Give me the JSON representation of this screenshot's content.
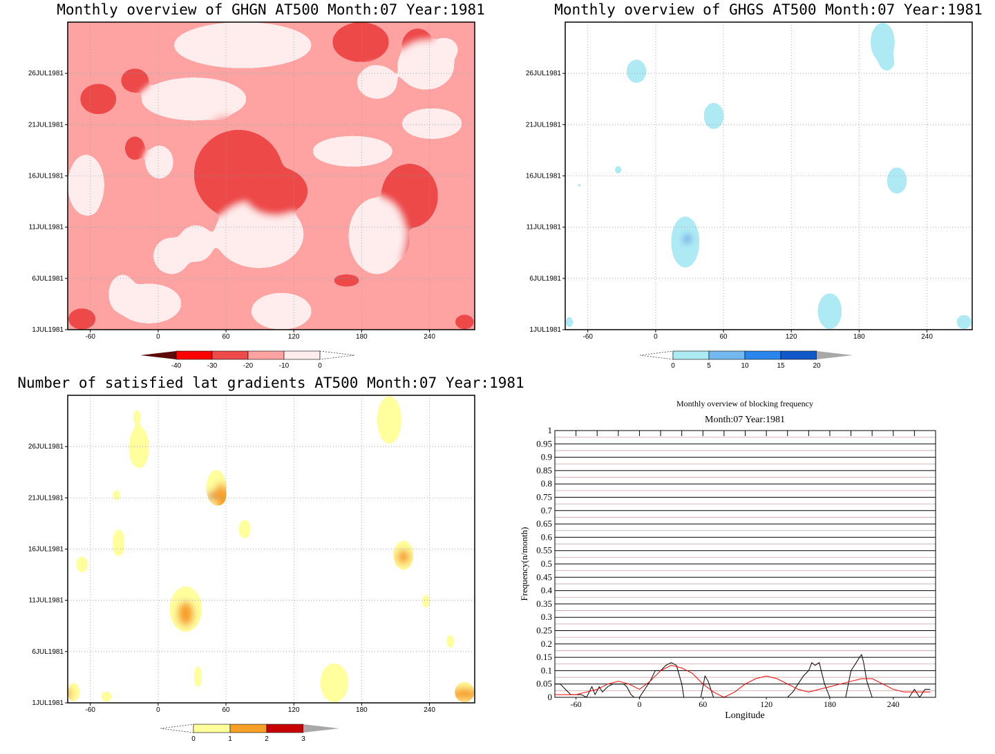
{
  "chart_data": [
    {
      "type": "heatmap",
      "title": "Monthly overview of GHGN AT500 Month:07 Year:1981",
      "x_ticks": [
        -60,
        0,
        60,
        120,
        180,
        240
      ],
      "y_ticks": [
        "1JUL1981",
        "6JUL1981",
        "11JUL1981",
        "16JUL1981",
        "21JUL1981",
        "26JUL1981"
      ],
      "xlim": [
        -80,
        280
      ],
      "ylim": [
        1,
        31
      ],
      "grid": true,
      "colorbar": {
        "labels": [
          "-40",
          "-30",
          "-20",
          "-10",
          "0"
        ],
        "colors": [
          "#5c0a0a",
          "#ff0000",
          "#ee4a4a",
          "#ffa2a2",
          "#ffecec"
        ]
      },
      "palette": [
        "#ffa2a2",
        "#ffecec",
        "#ee4a4a"
      ]
    },
    {
      "type": "heatmap",
      "title": "Monthly overview of GHGS AT500 Month:07 Year:1981",
      "x_ticks": [
        -60,
        0,
        60,
        120,
        180,
        240
      ],
      "y_ticks": [
        "1JUL1981",
        "6JUL1981",
        "11JUL1981",
        "16JUL1981",
        "21JUL1981",
        "26JUL1981"
      ],
      "xlim": [
        -80,
        280
      ],
      "ylim": [
        1,
        31
      ],
      "grid": true,
      "colorbar": {
        "labels": [
          "0",
          "5",
          "10",
          "15",
          "20"
        ],
        "colors": [
          "#aeeaf4",
          "#74b8f0",
          "#2a86ec",
          "#1158c8",
          "#a8a8a8"
        ]
      },
      "palette": [
        "#aeeaf4",
        "#5c9ae8"
      ]
    },
    {
      "type": "heatmap",
      "title": "Number of satisfied lat gradients AT500 Month:07 Year:1981",
      "x_ticks": [
        -60,
        0,
        60,
        120,
        180,
        240
      ],
      "y_ticks": [
        "1JUL1981",
        "6JUL1981",
        "11JUL1981",
        "16JUL1981",
        "21JUL1981",
        "26JUL1981"
      ],
      "xlim": [
        -80,
        280
      ],
      "ylim": [
        1,
        31
      ],
      "grid": true,
      "colorbar": {
        "labels": [
          "0",
          "1",
          "2",
          "3"
        ],
        "colors": [
          "#ffff9e",
          "#f7a028",
          "#c80000",
          "#a8a8a8"
        ]
      },
      "palette": [
        "#ffff9e",
        "#f7a028",
        "#c80000"
      ]
    },
    {
      "type": "line",
      "title": "Monthly overview of blocking frequency",
      "subtitle": "Month:07 Year:1981",
      "xlabel": "Longitude",
      "ylabel": "Frequency(n/month)",
      "x_ticks": [
        -60,
        0,
        60,
        120,
        180,
        240
      ],
      "y_ticks": [
        "0",
        "0.05",
        "0.1",
        "0.15",
        "0.2",
        "0.25",
        "0.3",
        "0.35",
        "0.4",
        "0.45",
        "0.5",
        "0.55",
        "0.6",
        "0.65",
        "0.7",
        "0.75",
        "0.8",
        "0.85",
        "0.9",
        "0.95",
        "1"
      ],
      "xlim": [
        -80,
        280
      ],
      "ylim": [
        0,
        1
      ],
      "grid": true,
      "series": [
        {
          "color": "#000000",
          "x": [
            -80,
            -75,
            -70,
            -65,
            -60,
            -55,
            -50,
            -45,
            -42,
            -38,
            -35,
            -30,
            -25,
            -20,
            -15,
            -12,
            -8,
            -5,
            0,
            5,
            10,
            15,
            20,
            25,
            30,
            35,
            40,
            42,
            45,
            50,
            55,
            58,
            60,
            62,
            65,
            70,
            75,
            80,
            85,
            90,
            95,
            100,
            105,
            110,
            115,
            120,
            125,
            130,
            135,
            140,
            145,
            150,
            155,
            160,
            163,
            166,
            170,
            175,
            180,
            185,
            190,
            195,
            200,
            205,
            208,
            210,
            212,
            215,
            220,
            225,
            230,
            235,
            240,
            245,
            250,
            255,
            260,
            265,
            270,
            275
          ],
          "y": [
            0.05,
            0.05,
            0.03,
            0.01,
            0.01,
            0.01,
            0.0,
            0.04,
            0.01,
            0.04,
            0.02,
            0.04,
            0.05,
            0.05,
            0.05,
            0.04,
            0.01,
            0.0,
            0.0,
            0.03,
            0.06,
            0.1,
            0.1,
            0.12,
            0.13,
            0.12,
            0.05,
            0.0,
            0.0,
            0.0,
            0.0,
            0.0,
            0.04,
            0.08,
            0.06,
            0.0,
            0.0,
            0.0,
            0.0,
            0.0,
            0.0,
            0.0,
            0.0,
            0.0,
            0.0,
            0.0,
            0.0,
            0.0,
            0.0,
            0.0,
            0.02,
            0.05,
            0.08,
            0.1,
            0.13,
            0.12,
            0.13,
            0.05,
            0.0,
            0.0,
            0.0,
            0.0,
            0.1,
            0.13,
            0.15,
            0.16,
            0.13,
            0.06,
            0.0,
            0.0,
            0.0,
            0.0,
            0.0,
            0.0,
            0.0,
            0.0,
            0.03,
            0.0,
            0.03,
            0.03
          ]
        },
        {
          "color": "#ff0000",
          "x": [
            -80,
            -70,
            -60,
            -50,
            -40,
            -30,
            -20,
            -10,
            0,
            10,
            20,
            30,
            40,
            50,
            60,
            70,
            80,
            90,
            100,
            110,
            120,
            130,
            140,
            150,
            160,
            170,
            180,
            190,
            200,
            210,
            220,
            230,
            240,
            250,
            260,
            270,
            275
          ],
          "y": [
            0.01,
            0.01,
            0.01,
            0.02,
            0.03,
            0.05,
            0.06,
            0.05,
            0.03,
            0.06,
            0.1,
            0.12,
            0.11,
            0.09,
            0.05,
            0.02,
            0.0,
            0.02,
            0.05,
            0.07,
            0.08,
            0.07,
            0.05,
            0.03,
            0.02,
            0.03,
            0.04,
            0.05,
            0.06,
            0.07,
            0.07,
            0.05,
            0.03,
            0.02,
            0.02,
            0.02,
            0.02
          ]
        }
      ]
    }
  ]
}
